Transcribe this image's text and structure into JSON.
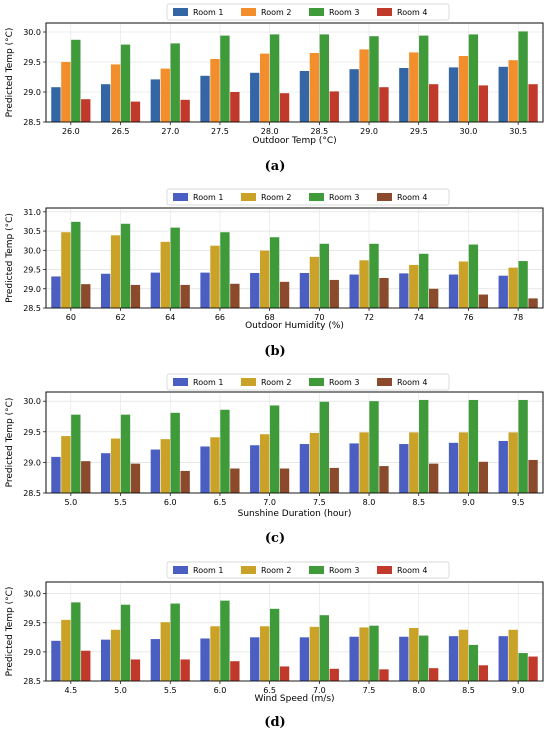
{
  "chart_data": [
    {
      "type": "bar",
      "panel_label": "(a)",
      "xlabel": "Outdoor Temp (°C)",
      "ylabel": "Predicted Temp (°C)",
      "ylim": [
        28.5,
        30.15
      ],
      "yticks": [
        "28.5",
        "29.0",
        "29.5",
        "30.0"
      ],
      "categories": [
        "26.0",
        "26.5",
        "27.0",
        "27.5",
        "28.0",
        "28.5",
        "29.0",
        "29.5",
        "30.0",
        "30.5"
      ],
      "legend_position": "top-center",
      "grid": true,
      "series": [
        {
          "name": "Room 1",
          "color": "#3465a4",
          "values": [
            29.08,
            29.13,
            29.21,
            29.27,
            29.32,
            29.35,
            29.38,
            29.4,
            29.41,
            29.42
          ]
        },
        {
          "name": "Room 2",
          "color": "#f28e2b",
          "values": [
            29.5,
            29.46,
            29.39,
            29.55,
            29.64,
            29.65,
            29.71,
            29.66,
            29.6,
            29.53
          ]
        },
        {
          "name": "Room 3",
          "color": "#3f9a3a",
          "values": [
            29.87,
            29.79,
            29.81,
            29.94,
            29.96,
            29.96,
            29.93,
            29.94,
            29.96,
            30.01
          ]
        },
        {
          "name": "Room 4",
          "color": "#c0392b",
          "values": [
            28.88,
            28.84,
            28.87,
            29.0,
            28.98,
            29.01,
            29.08,
            29.13,
            29.11,
            29.13
          ]
        }
      ]
    },
    {
      "type": "bar",
      "panel_label": "(b)",
      "xlabel": "Outdoor Humidity (%)",
      "ylabel": "Predicted Temp (°C)",
      "ylim": [
        28.5,
        31.1
      ],
      "yticks": [
        "28.5",
        "29.0",
        "29.5",
        "30.0",
        "30.5",
        "31.0"
      ],
      "categories": [
        "60",
        "62",
        "64",
        "66",
        "68",
        "70",
        "72",
        "74",
        "76",
        "78"
      ],
      "legend_position": "top-center",
      "grid": true,
      "series": [
        {
          "name": "Room 1",
          "color": "#4a5fc1",
          "values": [
            29.32,
            29.39,
            29.42,
            29.42,
            29.41,
            29.41,
            29.37,
            29.4,
            29.37,
            29.34
          ]
        },
        {
          "name": "Room 2",
          "color": "#c9a227",
          "values": [
            30.47,
            30.39,
            30.22,
            30.12,
            29.99,
            29.83,
            29.74,
            29.62,
            29.71,
            29.55
          ]
        },
        {
          "name": "Room 3",
          "color": "#3f9a3a",
          "values": [
            30.74,
            30.69,
            30.59,
            30.47,
            30.34,
            30.17,
            30.17,
            29.91,
            30.15,
            29.72
          ]
        },
        {
          "name": "Room 4",
          "color": "#8b4a2b",
          "values": [
            29.12,
            29.1,
            29.1,
            29.13,
            29.18,
            29.23,
            29.28,
            29.0,
            28.85,
            28.75
          ]
        }
      ]
    },
    {
      "type": "bar",
      "panel_label": "(c)",
      "xlabel": "Sunshine Duration (hour)",
      "ylabel": "Predicted Temp (°C)",
      "ylim": [
        28.5,
        30.15
      ],
      "yticks": [
        "28.5",
        "29.0",
        "29.5",
        "30.0"
      ],
      "categories": [
        "5.0",
        "5.5",
        "6.0",
        "6.5",
        "7.0",
        "7.5",
        "8.0",
        "8.5",
        "9.0",
        "9.5"
      ],
      "legend_position": "top-center",
      "grid": true,
      "series": [
        {
          "name": "Room 1",
          "color": "#4a5fc1",
          "values": [
            29.09,
            29.15,
            29.21,
            29.26,
            29.28,
            29.3,
            29.31,
            29.3,
            29.32,
            29.35
          ]
        },
        {
          "name": "Room 2",
          "color": "#c9a227",
          "values": [
            29.43,
            29.39,
            29.38,
            29.41,
            29.46,
            29.48,
            29.49,
            29.49,
            29.49,
            29.49
          ]
        },
        {
          "name": "Room 3",
          "color": "#3f9a3a",
          "values": [
            29.78,
            29.78,
            29.81,
            29.86,
            29.93,
            29.99,
            30.0,
            30.02,
            30.02,
            30.02
          ]
        },
        {
          "name": "Room 4",
          "color": "#8b4a2b",
          "values": [
            29.02,
            28.98,
            28.86,
            28.9,
            28.9,
            28.91,
            28.94,
            28.98,
            29.01,
            29.04
          ]
        }
      ]
    },
    {
      "type": "bar",
      "panel_label": "(d)",
      "xlabel": "Wind Speed (m/s)",
      "ylabel": "Predicted Temp (°C)",
      "ylim": [
        28.5,
        30.2
      ],
      "yticks": [
        "28.5",
        "29.0",
        "29.5",
        "30.0"
      ],
      "categories": [
        "4.5",
        "5.0",
        "5.5",
        "6.0",
        "6.5",
        "7.0",
        "7.5",
        "8.0",
        "8.5",
        "9.0"
      ],
      "legend_position": "top-center",
      "grid": true,
      "series": [
        {
          "name": "Room 1",
          "color": "#4a5fc1",
          "values": [
            29.19,
            29.21,
            29.22,
            29.23,
            29.25,
            29.25,
            29.26,
            29.26,
            29.27,
            29.27
          ]
        },
        {
          "name": "Room 2",
          "color": "#c9a227",
          "values": [
            29.55,
            29.38,
            29.51,
            29.44,
            29.44,
            29.43,
            29.42,
            29.41,
            29.38,
            29.38
          ]
        },
        {
          "name": "Room 3",
          "color": "#3f9a3a",
          "values": [
            29.85,
            29.81,
            29.83,
            29.88,
            29.74,
            29.63,
            29.45,
            29.28,
            29.12,
            28.98
          ]
        },
        {
          "name": "Room 4",
          "color": "#c0392b",
          "values": [
            29.02,
            28.87,
            28.87,
            28.84,
            28.75,
            28.71,
            28.7,
            28.72,
            28.77,
            28.92
          ]
        }
      ]
    }
  ]
}
